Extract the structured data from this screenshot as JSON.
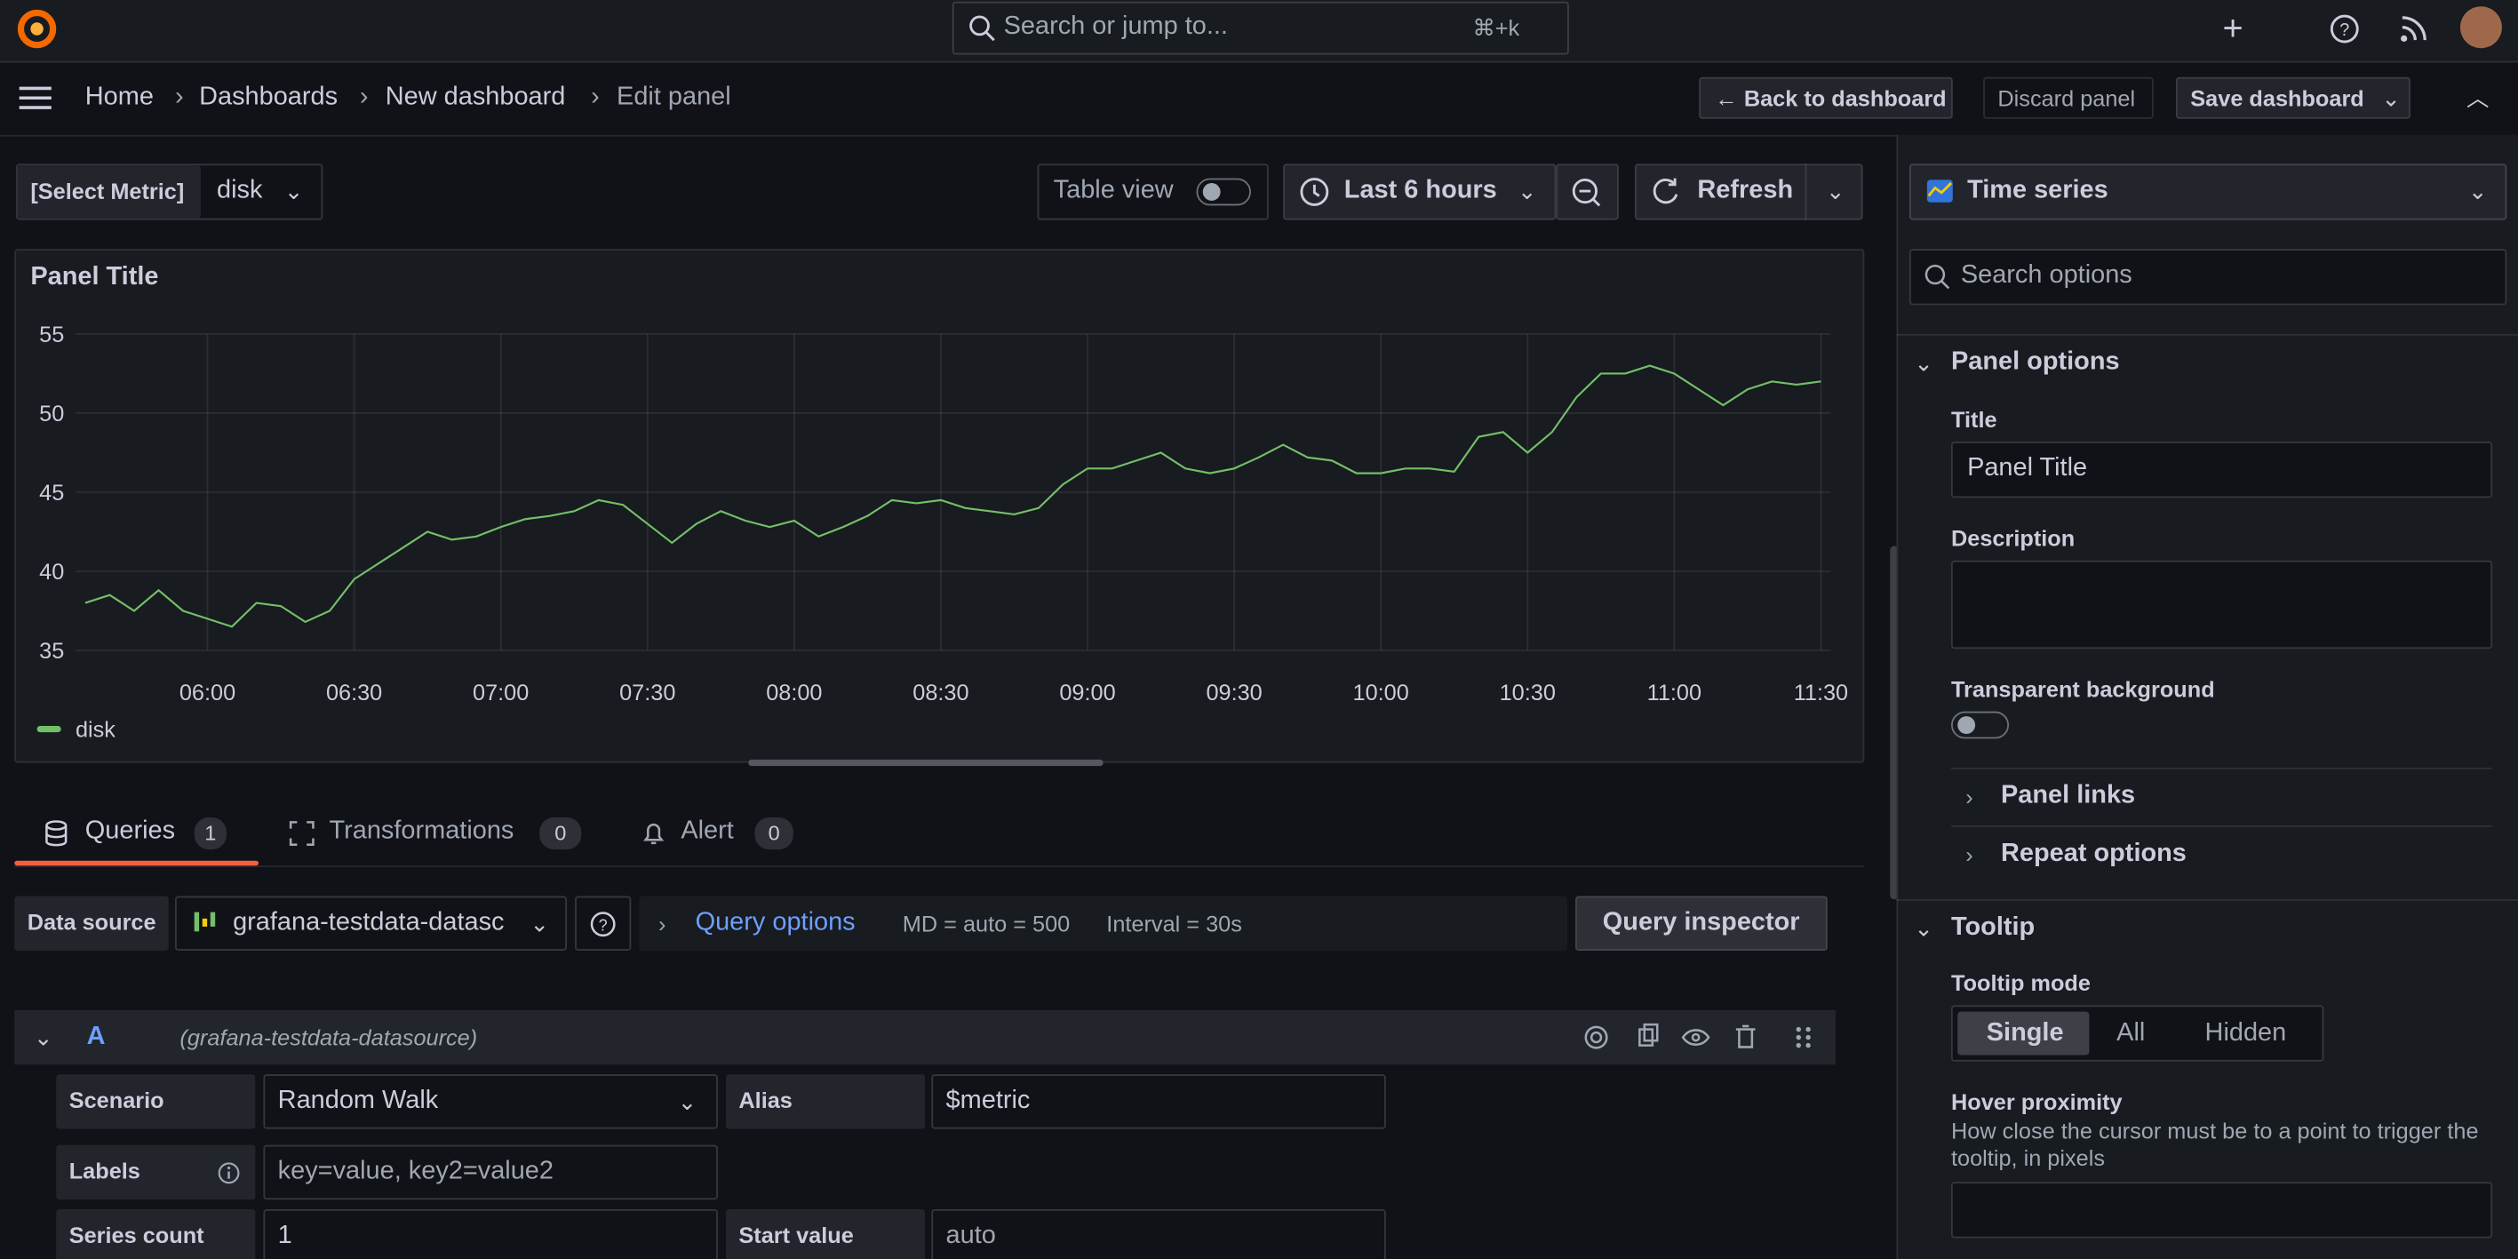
{
  "topbar": {
    "search": "Search or jump to...",
    "shortcut": "⌘+k"
  },
  "breadcrumbs": [
    "Home",
    "Dashboards",
    "New dashboard",
    "Edit panel"
  ],
  "actions": [
    "Back to dashboard",
    "Discard panel",
    "Save dashboard"
  ],
  "toolbar": {
    "variable_label": "[Select Metric]",
    "variable_value": "disk",
    "table_view": "Table view",
    "time_range": "Last 6 hours",
    "refresh": "Refresh"
  },
  "panel": {
    "title": "Panel Title",
    "chart": {
      "type": "line",
      "x": [
        "05:35",
        "05:40",
        "05:45",
        "05:50",
        "05:55",
        "06:00",
        "06:05",
        "06:10",
        "06:15",
        "06:20",
        "06:25",
        "06:30",
        "06:35",
        "06:40",
        "06:45",
        "06:50",
        "06:55",
        "07:00",
        "07:05",
        "07:10",
        "07:15",
        "07:20",
        "07:25",
        "07:30",
        "07:35",
        "07:40",
        "07:45",
        "07:50",
        "07:55",
        "08:00",
        "08:05",
        "08:10",
        "08:15",
        "08:20",
        "08:25",
        "08:30",
        "08:35",
        "08:40",
        "08:45",
        "08:50",
        "08:55",
        "09:00",
        "09:05",
        "09:10",
        "09:15",
        "09:20",
        "09:25",
        "09:30",
        "09:35",
        "09:40",
        "09:45",
        "09:50",
        "09:55",
        "10:00",
        "10:05",
        "10:10",
        "10:15",
        "10:20",
        "10:25",
        "10:30",
        "10:35",
        "10:40",
        "10:45",
        "10:50",
        "10:55",
        "11:00",
        "11:05",
        "11:10",
        "11:15",
        "11:20",
        "11:25",
        "11:30"
      ],
      "xlim": [
        "05:33",
        "11:32"
      ],
      "xticks": [
        "06:00",
        "06:30",
        "07:00",
        "07:30",
        "08:00",
        "08:30",
        "09:00",
        "09:30",
        "10:00",
        "10:30",
        "11:00",
        "11:30"
      ],
      "ylim": [
        35,
        55
      ],
      "yticks": [
        35,
        40,
        45,
        50,
        55
      ],
      "grid": true,
      "series": [
        {
          "name": "disk",
          "color": "#73bf69",
          "values": [
            38,
            38.5,
            37.5,
            38.8,
            37.5,
            37,
            36.5,
            38,
            37.8,
            36.8,
            37.5,
            39.5,
            40.5,
            41.5,
            42.5,
            42,
            42.2,
            42.8,
            43.3,
            43.5,
            43.8,
            44.5,
            44.2,
            43,
            41.8,
            43,
            43.8,
            43.2,
            42.8,
            43.2,
            42.2,
            42.8,
            43.5,
            44.5,
            44.3,
            44.5,
            44,
            43.8,
            43.6,
            44,
            45.5,
            46.5,
            46.5,
            47,
            47.5,
            46.5,
            46.2,
            46.5,
            47.2,
            48,
            47.2,
            47,
            46.2,
            46.2,
            46.5,
            46.5,
            46.3,
            48.5,
            48.8,
            47.5,
            48.8,
            51,
            52.5,
            52.5,
            53,
            52.5,
            51.5,
            50.5,
            51.5,
            52,
            51.8,
            52
          ]
        }
      ]
    }
  },
  "tabs": [
    {
      "label": "Queries",
      "count": 1
    },
    {
      "label": "Transformations",
      "count": 0
    },
    {
      "label": "Alert",
      "count": 0
    }
  ],
  "query_bar": {
    "data_source_label": "Data source",
    "data_source": "grafana-testdata-datasc",
    "query_options": "Query options",
    "max_data_points": "MD = auto = 500",
    "interval": "Interval = 30s",
    "inspector": "Query inspector"
  },
  "query": {
    "ref": "A",
    "datasource": "(grafana-testdata-datasource)",
    "fields": [
      {
        "label": "Scenario",
        "value": "Random Walk"
      },
      {
        "label": "Alias",
        "value": "$metric"
      },
      {
        "label": "Labels",
        "placeholder": "key=value, key2=value2"
      },
      {
        "label": "Series count",
        "value": "1"
      },
      {
        "label": "Start value",
        "placeholder": "auto"
      }
    ]
  },
  "sidebar": {
    "visualization": "Time series",
    "search": "Search options",
    "panel_options": {
      "heading": "Panel options",
      "title_label": "Title",
      "title_value": "Panel Title",
      "description_label": "Description",
      "transparent_label": "Transparent background",
      "panel_links": "Panel links",
      "repeat_options": "Repeat options"
    },
    "tooltip": {
      "heading": "Tooltip",
      "mode_label": "Tooltip mode",
      "modes": [
        "Single",
        "All",
        "Hidden"
      ],
      "hover_label": "Hover proximity",
      "hover_help": "How close the cursor must be to a point to trigger the tooltip, in pixels"
    }
  }
}
